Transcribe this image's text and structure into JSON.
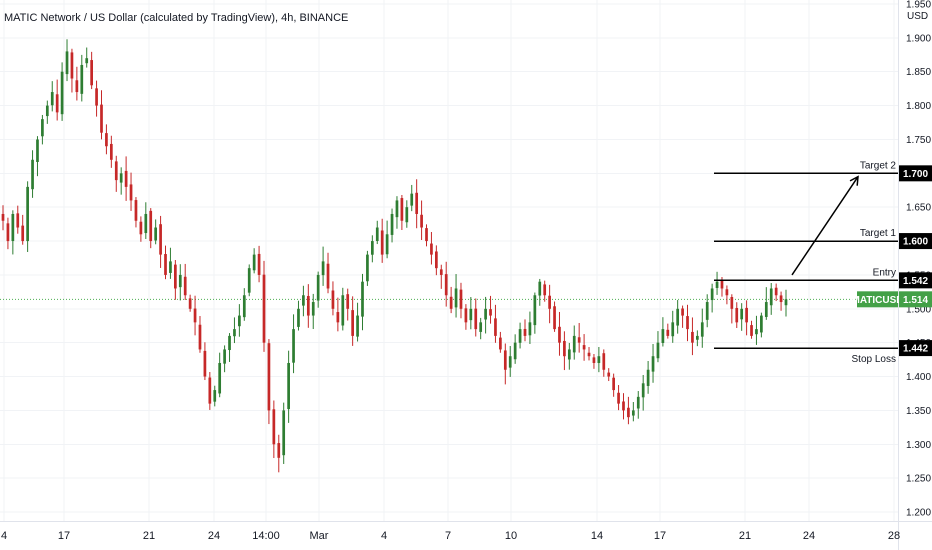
{
  "header": {
    "title": "MATIC Network / US Dollar (calculated by TradingView), 4h, BINANCE"
  },
  "colors": {
    "up": "#26a69a",
    "down": "#ef5350",
    "up_candle": "#2e7d32",
    "down_candle": "#c62828",
    "price_line": "#4caf50",
    "level_tag_bg": "#000000",
    "ticker_tag_bg": "#43a047"
  },
  "chart_data": {
    "type": "candlestick",
    "currency_label": "USD",
    "ylim": [
      1.2,
      1.95
    ],
    "y_ticks": [
      "1.950",
      "1.900",
      "1.850",
      "1.800",
      "1.750",
      "1.700",
      "1.650",
      "1.600",
      "1.550",
      "1.500",
      "1.450",
      "1.400",
      "1.350",
      "1.300",
      "1.250",
      "1.200"
    ],
    "x_ticks": [
      "4",
      "17",
      "21",
      "24",
      "14:00",
      "Mar",
      "4",
      "7",
      "10",
      "14",
      "17",
      "21",
      "24",
      "28"
    ],
    "current_price": {
      "symbol": "MATICUSD",
      "value": "1.514"
    },
    "levels": [
      {
        "name": "Target 2",
        "value": "1.700"
      },
      {
        "name": "Target 1",
        "value": "1.600"
      },
      {
        "name": "Entry",
        "value": "1.542"
      },
      {
        "name": "Stop Loss",
        "value": "1.442"
      }
    ],
    "close_series": [
      1.63,
      1.6,
      1.64,
      1.62,
      1.6,
      1.68,
      1.72,
      1.75,
      1.78,
      1.8,
      1.82,
      1.79,
      1.85,
      1.88,
      1.84,
      1.82,
      1.86,
      1.87,
      1.83,
      1.8,
      1.76,
      1.74,
      1.72,
      1.69,
      1.7,
      1.68,
      1.66,
      1.63,
      1.61,
      1.64,
      1.6,
      1.62,
      1.58,
      1.55,
      1.57,
      1.53,
      1.55,
      1.52,
      1.5,
      1.48,
      1.44,
      1.4,
      1.36,
      1.38,
      1.42,
      1.44,
      1.46,
      1.47,
      1.49,
      1.52,
      1.56,
      1.58,
      1.55,
      1.45,
      1.35,
      1.3,
      1.28,
      1.35,
      1.42,
      1.47,
      1.5,
      1.52,
      1.49,
      1.51,
      1.55,
      1.57,
      1.53,
      1.5,
      1.48,
      1.52,
      1.5,
      1.46,
      1.49,
      1.54,
      1.58,
      1.6,
      1.62,
      1.58,
      1.61,
      1.64,
      1.66,
      1.63,
      1.65,
      1.67,
      1.64,
      1.62,
      1.6,
      1.58,
      1.56,
      1.55,
      1.52,
      1.5,
      1.53,
      1.5,
      1.48,
      1.5,
      1.47,
      1.48,
      1.5,
      1.49,
      1.46,
      1.44,
      1.41,
      1.43,
      1.45,
      1.47,
      1.46,
      1.48,
      1.52,
      1.54,
      1.52,
      1.5,
      1.47,
      1.45,
      1.43,
      1.44,
      1.46,
      1.45,
      1.44,
      1.43,
      1.42,
      1.43,
      1.41,
      1.4,
      1.38,
      1.36,
      1.35,
      1.34,
      1.35,
      1.37,
      1.39,
      1.41,
      1.43,
      1.45,
      1.47,
      1.46,
      1.48,
      1.5,
      1.49,
      1.47,
      1.45,
      1.46,
      1.48,
      1.51,
      1.53,
      1.54,
      1.53,
      1.52,
      1.5,
      1.48,
      1.5,
      1.48,
      1.46,
      1.47,
      1.49,
      1.51,
      1.53,
      1.52,
      1.51,
      1.514
    ]
  }
}
